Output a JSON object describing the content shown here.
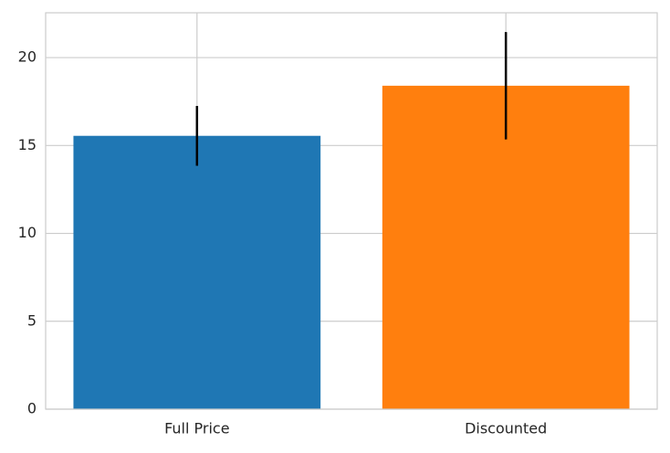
{
  "chart_data": {
    "type": "bar",
    "categories": [
      "Full Price",
      "Discounted"
    ],
    "values": [
      15.55,
      18.4
    ],
    "errors": [
      1.7,
      3.05
    ],
    "colors": [
      "#1f77b4",
      "#ff7f0e"
    ],
    "ylim": [
      0,
      22.55
    ],
    "yticks": [
      0,
      5,
      10,
      15,
      20
    ],
    "grid": true
  }
}
